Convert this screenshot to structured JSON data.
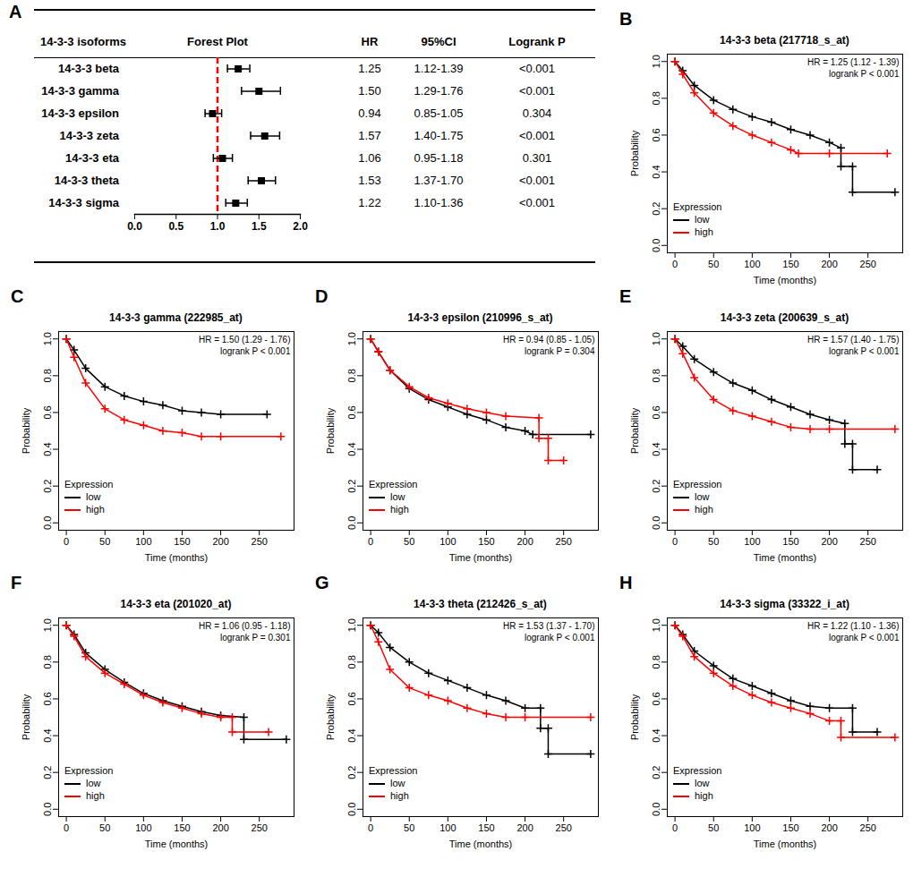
{
  "chart_data": [
    {
      "type": "forest",
      "panel": "A",
      "columns": [
        "14-3-3 isoforms",
        "Forest Plot",
        "HR",
        "95%CI",
        "Logrank P"
      ],
      "categories": [
        "14-3-3 beta",
        "14-3-3 gamma",
        "14-3-3 epsilon",
        "14-3-3 zeta",
        "14-3-3 eta",
        "14-3-3 theta",
        "14-3-3 sigma"
      ],
      "values": [
        1.25,
        1.5,
        0.94,
        1.57,
        1.06,
        1.53,
        1.22
      ],
      "value_labels": [
        "1.25",
        "1.50",
        "0.94",
        "1.57",
        "1.06",
        "1.53",
        "1.22"
      ],
      "lower": [
        1.12,
        1.29,
        0.85,
        1.4,
        0.95,
        1.37,
        1.1
      ],
      "upper": [
        1.39,
        1.76,
        1.05,
        1.75,
        1.18,
        1.7,
        1.36
      ],
      "ci_labels": [
        "1.12-1.39",
        "1.29-1.76",
        "0.85-1.05",
        "1.40-1.75",
        "0.95-1.18",
        "1.37-1.70",
        "1.10-1.36"
      ],
      "p_labels": [
        "<0.001",
        "<0.001",
        "0.304",
        "<0.001",
        "0.301",
        "<0.001",
        "<0.001"
      ],
      "reference_line": 1,
      "xlim": [
        0,
        2
      ],
      "xticks": [
        {
          "value": 0,
          "label": "0.0"
        },
        0.5,
        {
          "value": 1,
          "label": "1.0"
        },
        1.5,
        {
          "value": 2,
          "label": "2.0"
        }
      ]
    },
    {
      "type": "line",
      "panel": "B",
      "title": "14-3-3 beta (217718_s_at)",
      "annotations": [
        "HR = 1.25 (1.12 - 1.39)",
        "logrank P < 0.001"
      ],
      "xlabel": "Time (months)",
      "ylabel": "Probability",
      "legend_title": "Expression",
      "legend": "bottom-left",
      "xlim": [
        -10,
        295
      ],
      "xticks": [
        0,
        50,
        100,
        150,
        200,
        250
      ],
      "ylim": [
        -0.04,
        1.04
      ],
      "yticks": [
        {
          "value": 0,
          "label": "0.0"
        },
        0.2,
        0.4,
        0.6,
        0.8,
        {
          "value": 1,
          "label": "1.0"
        }
      ],
      "series": [
        {
          "name": "low",
          "color": "#000000",
          "marker": "plus",
          "x": [
            0,
            10,
            25,
            50,
            75,
            100,
            125,
            150,
            175,
            200,
            215,
            215,
            230,
            230,
            285
          ],
          "values": [
            1,
            0.95,
            0.87,
            0.79,
            0.74,
            0.7,
            0.67,
            0.63,
            0.6,
            0.56,
            0.53,
            0.43,
            0.43,
            0.29,
            0.29
          ]
        },
        {
          "name": "high",
          "color": "#ff0000",
          "marker": "plus",
          "x": [
            0,
            10,
            25,
            50,
            75,
            100,
            125,
            150,
            160,
            200,
            275
          ],
          "values": [
            1,
            0.93,
            0.83,
            0.72,
            0.65,
            0.6,
            0.56,
            0.52,
            0.5,
            0.5,
            0.5
          ]
        }
      ]
    },
    {
      "type": "line",
      "panel": "C",
      "title": "14-3-3 gamma (222985_at)",
      "annotations": [
        "HR = 1.50 (1.29 - 1.76)",
        "logrank P < 0.001"
      ],
      "xlabel": "Time (months)",
      "ylabel": "Probability",
      "legend_title": "Expression",
      "legend": "bottom-left",
      "xlim": [
        -10,
        295
      ],
      "xticks": [
        0,
        50,
        100,
        150,
        200,
        250
      ],
      "ylim": [
        -0.04,
        1.04
      ],
      "yticks": [
        {
          "value": 0,
          "label": "0.0"
        },
        0.2,
        0.4,
        0.6,
        0.8,
        {
          "value": 1,
          "label": "1.0"
        }
      ],
      "series": [
        {
          "name": "low",
          "color": "#000000",
          "marker": "plus",
          "x": [
            0,
            10,
            25,
            50,
            75,
            100,
            125,
            150,
            175,
            200,
            260
          ],
          "values": [
            1,
            0.94,
            0.84,
            0.74,
            0.69,
            0.66,
            0.64,
            0.61,
            0.6,
            0.59,
            0.59
          ]
        },
        {
          "name": "high",
          "color": "#ff0000",
          "marker": "plus",
          "x": [
            0,
            10,
            25,
            50,
            75,
            100,
            125,
            150,
            175,
            200,
            278
          ],
          "values": [
            1,
            0.9,
            0.76,
            0.62,
            0.56,
            0.53,
            0.5,
            0.49,
            0.47,
            0.47,
            0.47
          ]
        }
      ]
    },
    {
      "type": "line",
      "panel": "D",
      "title": "14-3-3 epsilon (210996_s_at)",
      "annotations": [
        "HR = 0.94 (0.85 - 1.05)",
        "logrank P = 0.304"
      ],
      "xlabel": "Time (months)",
      "ylabel": "Probability",
      "legend_title": "Expression",
      "legend": "bottom-left",
      "xlim": [
        -10,
        295
      ],
      "xticks": [
        0,
        50,
        100,
        150,
        200,
        250
      ],
      "ylim": [
        -0.04,
        1.04
      ],
      "yticks": [
        {
          "value": 0,
          "label": "0.0"
        },
        0.2,
        0.4,
        0.6,
        0.8,
        {
          "value": 1,
          "label": "1.0"
        }
      ],
      "series": [
        {
          "name": "low",
          "color": "#000000",
          "marker": "plus",
          "x": [
            0,
            10,
            25,
            50,
            75,
            100,
            125,
            150,
            175,
            200,
            210,
            285
          ],
          "values": [
            1,
            0.93,
            0.83,
            0.73,
            0.67,
            0.63,
            0.59,
            0.56,
            0.52,
            0.5,
            0.48,
            0.48
          ]
        },
        {
          "name": "high",
          "color": "#ff0000",
          "marker": "plus",
          "x": [
            0,
            10,
            25,
            50,
            75,
            100,
            125,
            150,
            175,
            218,
            218,
            230,
            230,
            250
          ],
          "values": [
            1,
            0.93,
            0.83,
            0.74,
            0.68,
            0.65,
            0.62,
            0.6,
            0.58,
            0.57,
            0.46,
            0.46,
            0.34,
            0.34
          ]
        }
      ]
    },
    {
      "type": "line",
      "panel": "E",
      "title": "14-3-3 zeta (200639_s_at)",
      "annotations": [
        "HR = 1.57 (1.40 - 1.75)",
        "logrank P < 0.001"
      ],
      "xlabel": "Time (months)",
      "ylabel": "Probability",
      "legend_title": "Expression",
      "legend": "bottom-left",
      "xlim": [
        -10,
        295
      ],
      "xticks": [
        0,
        50,
        100,
        150,
        200,
        250
      ],
      "ylim": [
        -0.04,
        1.04
      ],
      "yticks": [
        {
          "value": 0,
          "label": "0.0"
        },
        0.2,
        0.4,
        0.6,
        0.8,
        {
          "value": 1,
          "label": "1.0"
        }
      ],
      "series": [
        {
          "name": "low",
          "color": "#000000",
          "marker": "plus",
          "x": [
            0,
            10,
            25,
            50,
            75,
            100,
            125,
            150,
            175,
            200,
            220,
            220,
            230,
            230,
            262
          ],
          "values": [
            1,
            0.96,
            0.89,
            0.82,
            0.76,
            0.72,
            0.67,
            0.63,
            0.59,
            0.56,
            0.54,
            0.43,
            0.43,
            0.29,
            0.29
          ]
        },
        {
          "name": "high",
          "color": "#ff0000",
          "marker": "plus",
          "x": [
            0,
            10,
            25,
            50,
            75,
            100,
            125,
            150,
            175,
            200,
            285
          ],
          "values": [
            1,
            0.92,
            0.79,
            0.67,
            0.61,
            0.58,
            0.55,
            0.52,
            0.51,
            0.51,
            0.51
          ]
        }
      ]
    },
    {
      "type": "line",
      "panel": "F",
      "title": "14-3-3 eta (201020_at)",
      "annotations": [
        "HR = 1.06 (0.95 - 1.18)",
        "logrank P = 0.301"
      ],
      "xlabel": "Time (months)",
      "ylabel": "Probability",
      "legend_title": "Expression",
      "legend": "bottom-left",
      "xlim": [
        -10,
        295
      ],
      "xticks": [
        0,
        50,
        100,
        150,
        200,
        250
      ],
      "ylim": [
        -0.04,
        1.04
      ],
      "yticks": [
        {
          "value": 0,
          "label": "0.0"
        },
        0.2,
        0.4,
        0.6,
        0.8,
        {
          "value": 1,
          "label": "1.0"
        }
      ],
      "series": [
        {
          "name": "low",
          "color": "#000000",
          "marker": "plus",
          "x": [
            0,
            10,
            25,
            50,
            75,
            100,
            125,
            150,
            175,
            200,
            230,
            230,
            285
          ],
          "values": [
            1,
            0.95,
            0.85,
            0.76,
            0.69,
            0.63,
            0.59,
            0.56,
            0.53,
            0.51,
            0.5,
            0.38,
            0.38
          ]
        },
        {
          "name": "high",
          "color": "#ff0000",
          "marker": "plus",
          "x": [
            0,
            10,
            25,
            50,
            75,
            100,
            125,
            150,
            175,
            200,
            215,
            215,
            262
          ],
          "values": [
            1,
            0.94,
            0.83,
            0.74,
            0.68,
            0.62,
            0.58,
            0.55,
            0.52,
            0.5,
            0.5,
            0.42,
            0.42
          ]
        }
      ]
    },
    {
      "type": "line",
      "panel": "G",
      "title": "14-3-3 theta (212426_s_at)",
      "annotations": [
        "HR = 1.53 (1.37 - 1.70)",
        "logrank P < 0.001"
      ],
      "xlabel": "Time (months)",
      "ylabel": "Probability",
      "legend_title": "Expression",
      "legend": "bottom-left",
      "xlim": [
        -10,
        295
      ],
      "xticks": [
        0,
        50,
        100,
        150,
        200,
        250
      ],
      "ylim": [
        -0.04,
        1.04
      ],
      "yticks": [
        {
          "value": 0,
          "label": "0.0"
        },
        0.2,
        0.4,
        0.6,
        0.8,
        {
          "value": 1,
          "label": "1.0"
        }
      ],
      "series": [
        {
          "name": "low",
          "color": "#000000",
          "marker": "plus",
          "x": [
            0,
            10,
            25,
            50,
            75,
            100,
            125,
            150,
            175,
            200,
            220,
            220,
            230,
            230,
            285
          ],
          "values": [
            1,
            0.96,
            0.88,
            0.8,
            0.74,
            0.7,
            0.66,
            0.62,
            0.59,
            0.55,
            0.55,
            0.44,
            0.44,
            0.3,
            0.3
          ]
        },
        {
          "name": "high",
          "color": "#ff0000",
          "marker": "plus",
          "x": [
            0,
            10,
            25,
            50,
            75,
            100,
            125,
            150,
            175,
            200,
            285
          ],
          "values": [
            1,
            0.91,
            0.76,
            0.66,
            0.62,
            0.59,
            0.55,
            0.52,
            0.5,
            0.5,
            0.5
          ]
        }
      ]
    },
    {
      "type": "line",
      "panel": "H",
      "title": "14-3-3 sigma (33322_i_at)",
      "annotations": [
        "HR = 1.22 (1.10 - 1.36)",
        "logrank P < 0.001"
      ],
      "xlabel": "Time (months)",
      "ylabel": "Probability",
      "legend_title": "Expression",
      "legend": "bottom-left",
      "xlim": [
        -10,
        295
      ],
      "xticks": [
        0,
        50,
        100,
        150,
        200,
        250
      ],
      "ylim": [
        -0.04,
        1.04
      ],
      "yticks": [
        {
          "value": 0,
          "label": "0.0"
        },
        0.2,
        0.4,
        0.6,
        0.8,
        {
          "value": 1,
          "label": "1.0"
        }
      ],
      "series": [
        {
          "name": "low",
          "color": "#000000",
          "marker": "plus",
          "x": [
            0,
            10,
            25,
            50,
            75,
            100,
            125,
            150,
            175,
            200,
            230,
            230,
            262
          ],
          "values": [
            1,
            0.95,
            0.86,
            0.78,
            0.71,
            0.67,
            0.63,
            0.59,
            0.56,
            0.55,
            0.55,
            0.42,
            0.42
          ]
        },
        {
          "name": "high",
          "color": "#ff0000",
          "marker": "plus",
          "x": [
            0,
            10,
            25,
            50,
            75,
            100,
            125,
            150,
            175,
            200,
            215,
            215,
            285
          ],
          "values": [
            1,
            0.94,
            0.83,
            0.74,
            0.67,
            0.62,
            0.58,
            0.55,
            0.52,
            0.48,
            0.48,
            0.39,
            0.39
          ]
        }
      ]
    }
  ]
}
